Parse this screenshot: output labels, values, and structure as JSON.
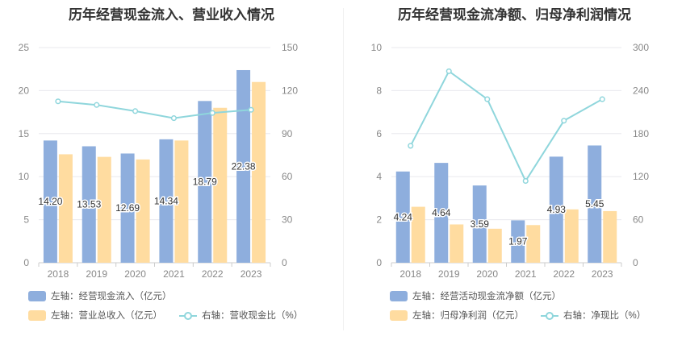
{
  "colors": {
    "bar1": "#8eaedd",
    "bar2": "#ffdca0",
    "line": "#8fd6dc",
    "grid": "#e8e8ee",
    "text": "#888888"
  },
  "chart_data": [
    {
      "type": "bar",
      "title": "历年经营现金流入、营业收入情况",
      "categories": [
        "2018",
        "2019",
        "2020",
        "2021",
        "2022",
        "2023"
      ],
      "left_axis": {
        "ylim": [
          0,
          25
        ],
        "ticks": [
          0,
          5,
          10,
          15,
          20,
          25
        ]
      },
      "right_axis": {
        "ylim": [
          0,
          150
        ],
        "ticks": [
          0,
          30,
          60,
          90,
          120,
          150
        ]
      },
      "series": [
        {
          "name": "左轴：经营现金流入（亿元）",
          "type": "bar",
          "axis": "left",
          "values": [
            14.2,
            13.53,
            12.69,
            14.34,
            18.79,
            22.38
          ],
          "show_labels": true
        },
        {
          "name": "左轴：营业总收入（亿元）",
          "type": "bar",
          "axis": "left",
          "values": [
            12.6,
            12.3,
            12.0,
            14.2,
            18.0,
            21.0
          ],
          "show_labels": false
        },
        {
          "name": "右轴：营收现金比（%）",
          "type": "line",
          "axis": "right",
          "values": [
            112.5,
            110.0,
            105.7,
            100.8,
            104.4,
            106.6
          ],
          "show_labels": false
        }
      ]
    },
    {
      "type": "bar",
      "title": "历年经营现金流净额、归母净利润情况",
      "categories": [
        "2018",
        "2019",
        "2020",
        "2021",
        "2022",
        "2023"
      ],
      "left_axis": {
        "ylim": [
          0,
          10
        ],
        "ticks": [
          0,
          2,
          4,
          6,
          8,
          10
        ]
      },
      "right_axis": {
        "ylim": [
          0,
          300
        ],
        "ticks": [
          0,
          60,
          120,
          180,
          240,
          300
        ]
      },
      "series": [
        {
          "name": "左轴：经营活动现金流净额（亿元）",
          "type": "bar",
          "axis": "left",
          "values": [
            4.24,
            4.64,
            3.59,
            1.97,
            4.93,
            5.45
          ],
          "show_labels": true
        },
        {
          "name": "左轴：归母净利润（亿元）",
          "type": "bar",
          "axis": "left",
          "values": [
            2.6,
            1.78,
            1.58,
            1.75,
            2.48,
            2.4
          ],
          "show_labels": false
        },
        {
          "name": "右轴：净现比（%）",
          "type": "line",
          "axis": "right",
          "values": [
            163,
            267,
            228,
            114,
            198,
            228
          ],
          "show_labels": false
        }
      ]
    }
  ]
}
